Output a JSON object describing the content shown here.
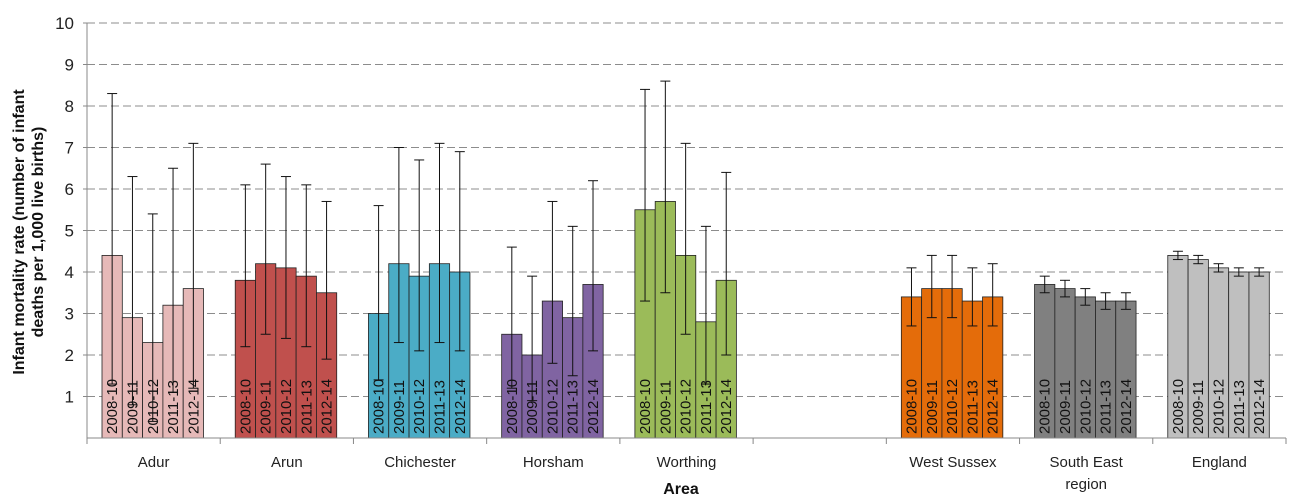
{
  "chart_data": {
    "type": "bar",
    "xlabel": "Area",
    "ylabel": "Infant mortality rate (number of infant deaths per 1,000 live births)",
    "ylim": [
      0,
      10
    ],
    "yticks": [
      "1",
      "2",
      "3",
      "4",
      "5",
      "6",
      "7",
      "8",
      "9",
      "10"
    ],
    "grid": true,
    "periods": [
      "2008-10",
      "2009-11",
      "2010-12",
      "2011-13",
      "2012-14"
    ],
    "groups": [
      {
        "name": "Adur",
        "color": "#e6b9b8",
        "values": [
          4.4,
          2.9,
          2.3,
          3.2,
          3.6
        ],
        "error_low": [
          1.3,
          0.8,
          0.4,
          1.1,
          1.2
        ],
        "error_high": [
          8.3,
          6.3,
          5.4,
          6.5,
          7.1
        ]
      },
      {
        "name": "Arun",
        "color": "#c0504d",
        "values": [
          3.8,
          4.2,
          4.1,
          3.9,
          3.5
        ],
        "error_low": [
          2.2,
          2.5,
          2.4,
          2.2,
          1.9
        ],
        "error_high": [
          6.1,
          6.6,
          6.3,
          6.1,
          5.7
        ]
      },
      {
        "name": "Chichester",
        "color": "#4bacc6",
        "values": [
          3.0,
          4.2,
          3.9,
          4.2,
          4.0
        ],
        "error_low": [
          1.4,
          2.3,
          2.1,
          2.3,
          2.1
        ],
        "error_high": [
          5.6,
          7.0,
          6.7,
          7.1,
          6.9
        ]
      },
      {
        "name": "Horsham",
        "color": "#8064a2",
        "values": [
          2.5,
          2.0,
          3.3,
          2.9,
          3.7
        ],
        "error_low": [
          1.2,
          0.9,
          1.8,
          1.5,
          2.1
        ],
        "error_high": [
          4.6,
          3.9,
          5.7,
          5.1,
          6.2
        ]
      },
      {
        "name": "Worthing",
        "color": "#9bbb59",
        "values": [
          5.5,
          5.7,
          4.4,
          2.8,
          3.8
        ],
        "error_low": [
          3.3,
          3.5,
          2.5,
          1.3,
          2.0
        ],
        "error_high": [
          8.4,
          8.6,
          7.1,
          5.1,
          6.4
        ]
      },
      {
        "name": "West Sussex",
        "color": "#e46c0a",
        "values": [
          3.4,
          3.6,
          3.6,
          3.3,
          3.4
        ],
        "error_low": [
          2.7,
          2.9,
          2.9,
          2.7,
          2.7
        ],
        "error_high": [
          4.1,
          4.4,
          4.4,
          4.1,
          4.2
        ]
      },
      {
        "name": "South East region",
        "label_lines": [
          "South East",
          "region"
        ],
        "color": "#808080",
        "values": [
          3.7,
          3.6,
          3.4,
          3.3,
          3.3
        ],
        "error_low": [
          3.5,
          3.4,
          3.2,
          3.1,
          3.1
        ],
        "error_high": [
          3.9,
          3.8,
          3.6,
          3.5,
          3.5
        ]
      },
      {
        "name": "England",
        "color": "#bfbfbf",
        "values": [
          4.4,
          4.3,
          4.1,
          4.0,
          4.0
        ],
        "error_low": [
          4.3,
          4.2,
          4.0,
          3.9,
          3.9
        ],
        "error_high": [
          4.5,
          4.4,
          4.2,
          4.1,
          4.1
        ]
      }
    ]
  }
}
